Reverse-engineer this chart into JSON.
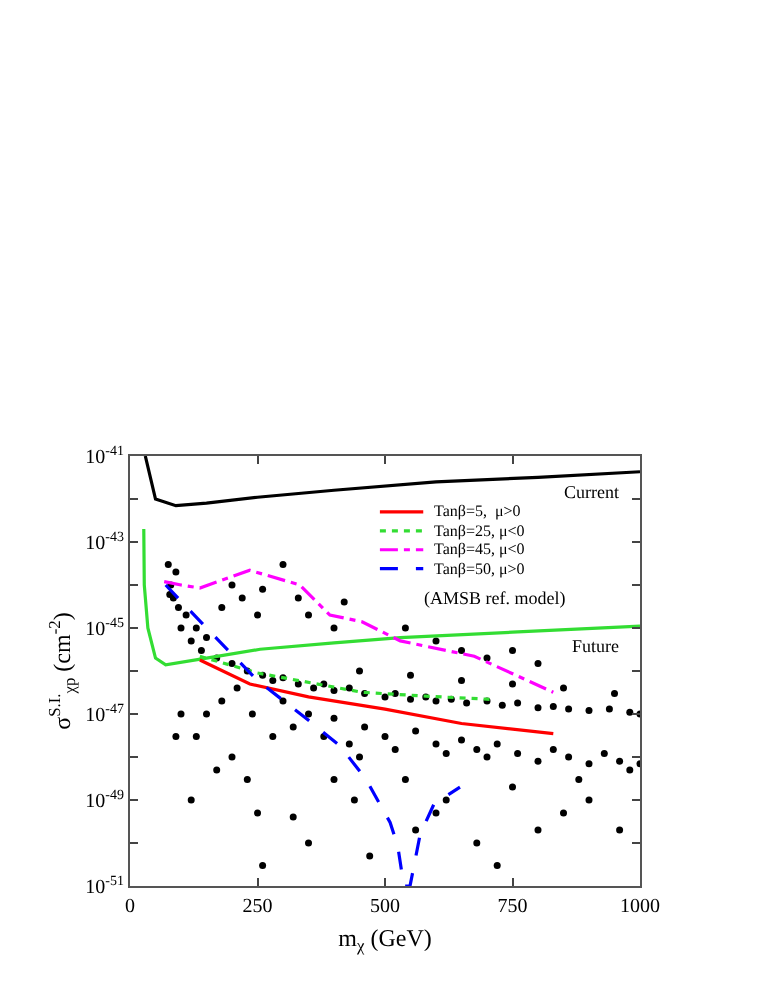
{
  "chart_data": {
    "type": "line",
    "xlabel": "m$_{χ}$ (GeV)",
    "ylabel": "σ$^{S.I.}$$_{χp}$ (cm$^{-2}$)",
    "log": "y",
    "legend": "top right",
    "xlim": [
      0,
      1000
    ],
    "xticks": [
      0,
      250,
      500,
      750,
      1000
    ],
    "ylim": [
      1e-51,
      1e-41
    ],
    "yticks": [
      {
        "value": 1e-41,
        "label": "10$^{-41}$"
      },
      {
        "value": 1e-42,
        "label": null
      },
      {
        "value": 1e-43,
        "label": "10$^{-43}$"
      },
      {
        "value": 1e-44,
        "label": null
      },
      {
        "value": 1e-45,
        "label": "10$^{-45}$"
      },
      {
        "value": 1e-46,
        "label": null
      },
      {
        "value": 1e-47,
        "label": "10$^{-47}$"
      },
      {
        "value": 1e-48,
        "label": null
      },
      {
        "value": 1e-49,
        "label": "10$^{-49}$"
      },
      {
        "value": 1e-50,
        "label": null
      },
      {
        "value": 1e-51,
        "label": "10$^{-51}$"
      }
    ],
    "series": [
      {
        "type": "scatter",
        "marker": "circle",
        "color": "#000000",
        "x": [
          75,
          80,
          85,
          90,
          78,
          95,
          100,
          110,
          120,
          130,
          140,
          150,
          180,
          200,
          220,
          250,
          260,
          300,
          330,
          350,
          400,
          420,
          540,
          600,
          650,
          700,
          750,
          800,
          170,
          200,
          230,
          260,
          280,
          300,
          330,
          360,
          380,
          400,
          430,
          460,
          500,
          520,
          550,
          580,
          600,
          630,
          660,
          700,
          730,
          760,
          800,
          830,
          860,
          900,
          940,
          980,
          1000,
          450,
          550,
          650,
          750,
          850,
          950,
          300,
          320,
          350,
          380,
          400,
          430,
          460,
          500,
          520,
          560,
          600,
          620,
          650,
          680,
          700,
          720,
          760,
          800,
          830,
          860,
          900,
          930,
          960,
          1000,
          100,
          130,
          150,
          170,
          200,
          230,
          250,
          260,
          320,
          350,
          400,
          440,
          470,
          560,
          600,
          680,
          720,
          800,
          850,
          900,
          960,
          980,
          120,
          90,
          180,
          210,
          240,
          280,
          450,
          540,
          620,
          750,
          880
        ],
        "values": [
          3e-44,
          1e-44,
          5e-45,
          2e-44,
          6e-45,
          3e-45,
          1e-45,
          2e-45,
          5e-46,
          1e-45,
          3e-46,
          6e-46,
          3e-45,
          1e-44,
          5e-45,
          2e-45,
          8e-45,
          3e-44,
          5e-45,
          2e-45,
          1e-45,
          4e-45,
          1e-45,
          5e-46,
          3e-46,
          2e-46,
          3e-46,
          1.5e-46,
          2e-46,
          1.5e-46,
          1e-46,
          8e-47,
          6e-47,
          7e-47,
          5e-47,
          4e-47,
          5e-47,
          3.5e-47,
          4e-47,
          3e-47,
          2.5e-47,
          3e-47,
          2.2e-47,
          2.5e-47,
          2e-47,
          2.2e-47,
          1.8e-47,
          2e-47,
          1.6e-47,
          1.8e-47,
          1.4e-47,
          1.5e-47,
          1.3e-47,
          1.2e-47,
          1.3e-47,
          1.1e-47,
          1e-47,
          1e-46,
          8e-47,
          6e-47,
          5e-47,
          4e-47,
          3e-47,
          2e-47,
          5e-48,
          1e-47,
          3e-48,
          8e-48,
          2e-48,
          5e-48,
          3e-48,
          1.5e-48,
          4e-48,
          2e-48,
          1.2e-48,
          2.5e-48,
          1.5e-48,
          1e-48,
          2e-48,
          1.2e-48,
          8e-49,
          1.5e-48,
          1e-48,
          7e-49,
          1.2e-48,
          8e-49,
          7e-49,
          1e-47,
          3e-48,
          1e-47,
          5e-49,
          1e-48,
          3e-49,
          5e-50,
          3e-51,
          4e-50,
          1e-50,
          3e-49,
          1e-49,
          5e-51,
          2e-50,
          5e-50,
          1e-50,
          3e-51,
          2e-50,
          5e-50,
          1e-49,
          2e-50,
          5e-49,
          1e-49,
          3e-48,
          2e-47,
          4e-47,
          1e-47,
          3e-48,
          1e-48,
          3e-49,
          1e-49,
          2e-49,
          3e-49
        ]
      },
      {
        "color": "#000000",
        "line_style": "solid",
        "x": [
          30,
          50,
          90,
          150,
          250,
          400,
          600,
          800,
          1000
        ],
        "values": [
          1e-41,
          1e-42,
          7e-43,
          8e-43,
          1.1e-42,
          1.6e-42,
          2.5e-42,
          3.2e-42,
          4.3e-42
        ]
      },
      {
        "color": "#33dd33",
        "line_style": "solid",
        "x": [
          27,
          28,
          35,
          50,
          70,
          150,
          255,
          400,
          530,
          750,
          1000
        ],
        "values": [
          2e-43,
          1e-44,
          1e-45,
          2e-46,
          1.4e-46,
          2e-46,
          3.2e-46,
          4.5e-46,
          6e-46,
          8e-46,
          1.1e-45
        ]
      },
      {
        "name": "Tanβ=5,  μ>0",
        "color": "#ff0000",
        "line_style": "solid",
        "x": [
          137,
          235,
          350,
          500,
          650,
          830
        ],
        "values": [
          1.8e-46,
          5e-47,
          2.5e-47,
          1.3e-47,
          6e-48,
          3.5e-48
        ]
      },
      {
        "name": "Tanβ=25, μ<0",
        "color": "#33dd33",
        "line_style": "dotted",
        "x": [
          137,
          250,
          455,
          580,
          705
        ],
        "values": [
          2.2e-46,
          9e-47,
          3.2e-47,
          2.6e-47,
          2.2e-47
        ]
      },
      {
        "name": "Tanβ=45, μ<0",
        "color": "#ff00ff",
        "line_style": "dashdot",
        "x": [
          67,
          100,
          137,
          235,
          333,
          392,
          455,
          530,
          675,
          830
        ],
        "values": [
          1.2e-44,
          1e-44,
          8.5e-45,
          2.2e-44,
          1e-44,
          2e-45,
          1.4e-45,
          5e-46,
          2.2e-46,
          3.2e-47
        ]
      },
      {
        "name": "Tanβ=50, μ>0",
        "color": "#0000ff",
        "line_style": "dashed",
        "x": [
          70,
          150,
          250,
          345,
          412,
          463,
          510,
          525,
          537,
          549,
          569,
          596,
          647
        ],
        "values": [
          1e-44,
          1e-45,
          6e-47,
          8e-48,
          1.8e-48,
          3e-49,
          3e-50,
          8.5e-51,
          1e-51,
          1e-51,
          1.6e-50,
          8e-50,
          2e-49
        ]
      }
    ],
    "annotations": [
      "Current",
      "Future",
      "(AMSB ref. model)"
    ]
  }
}
